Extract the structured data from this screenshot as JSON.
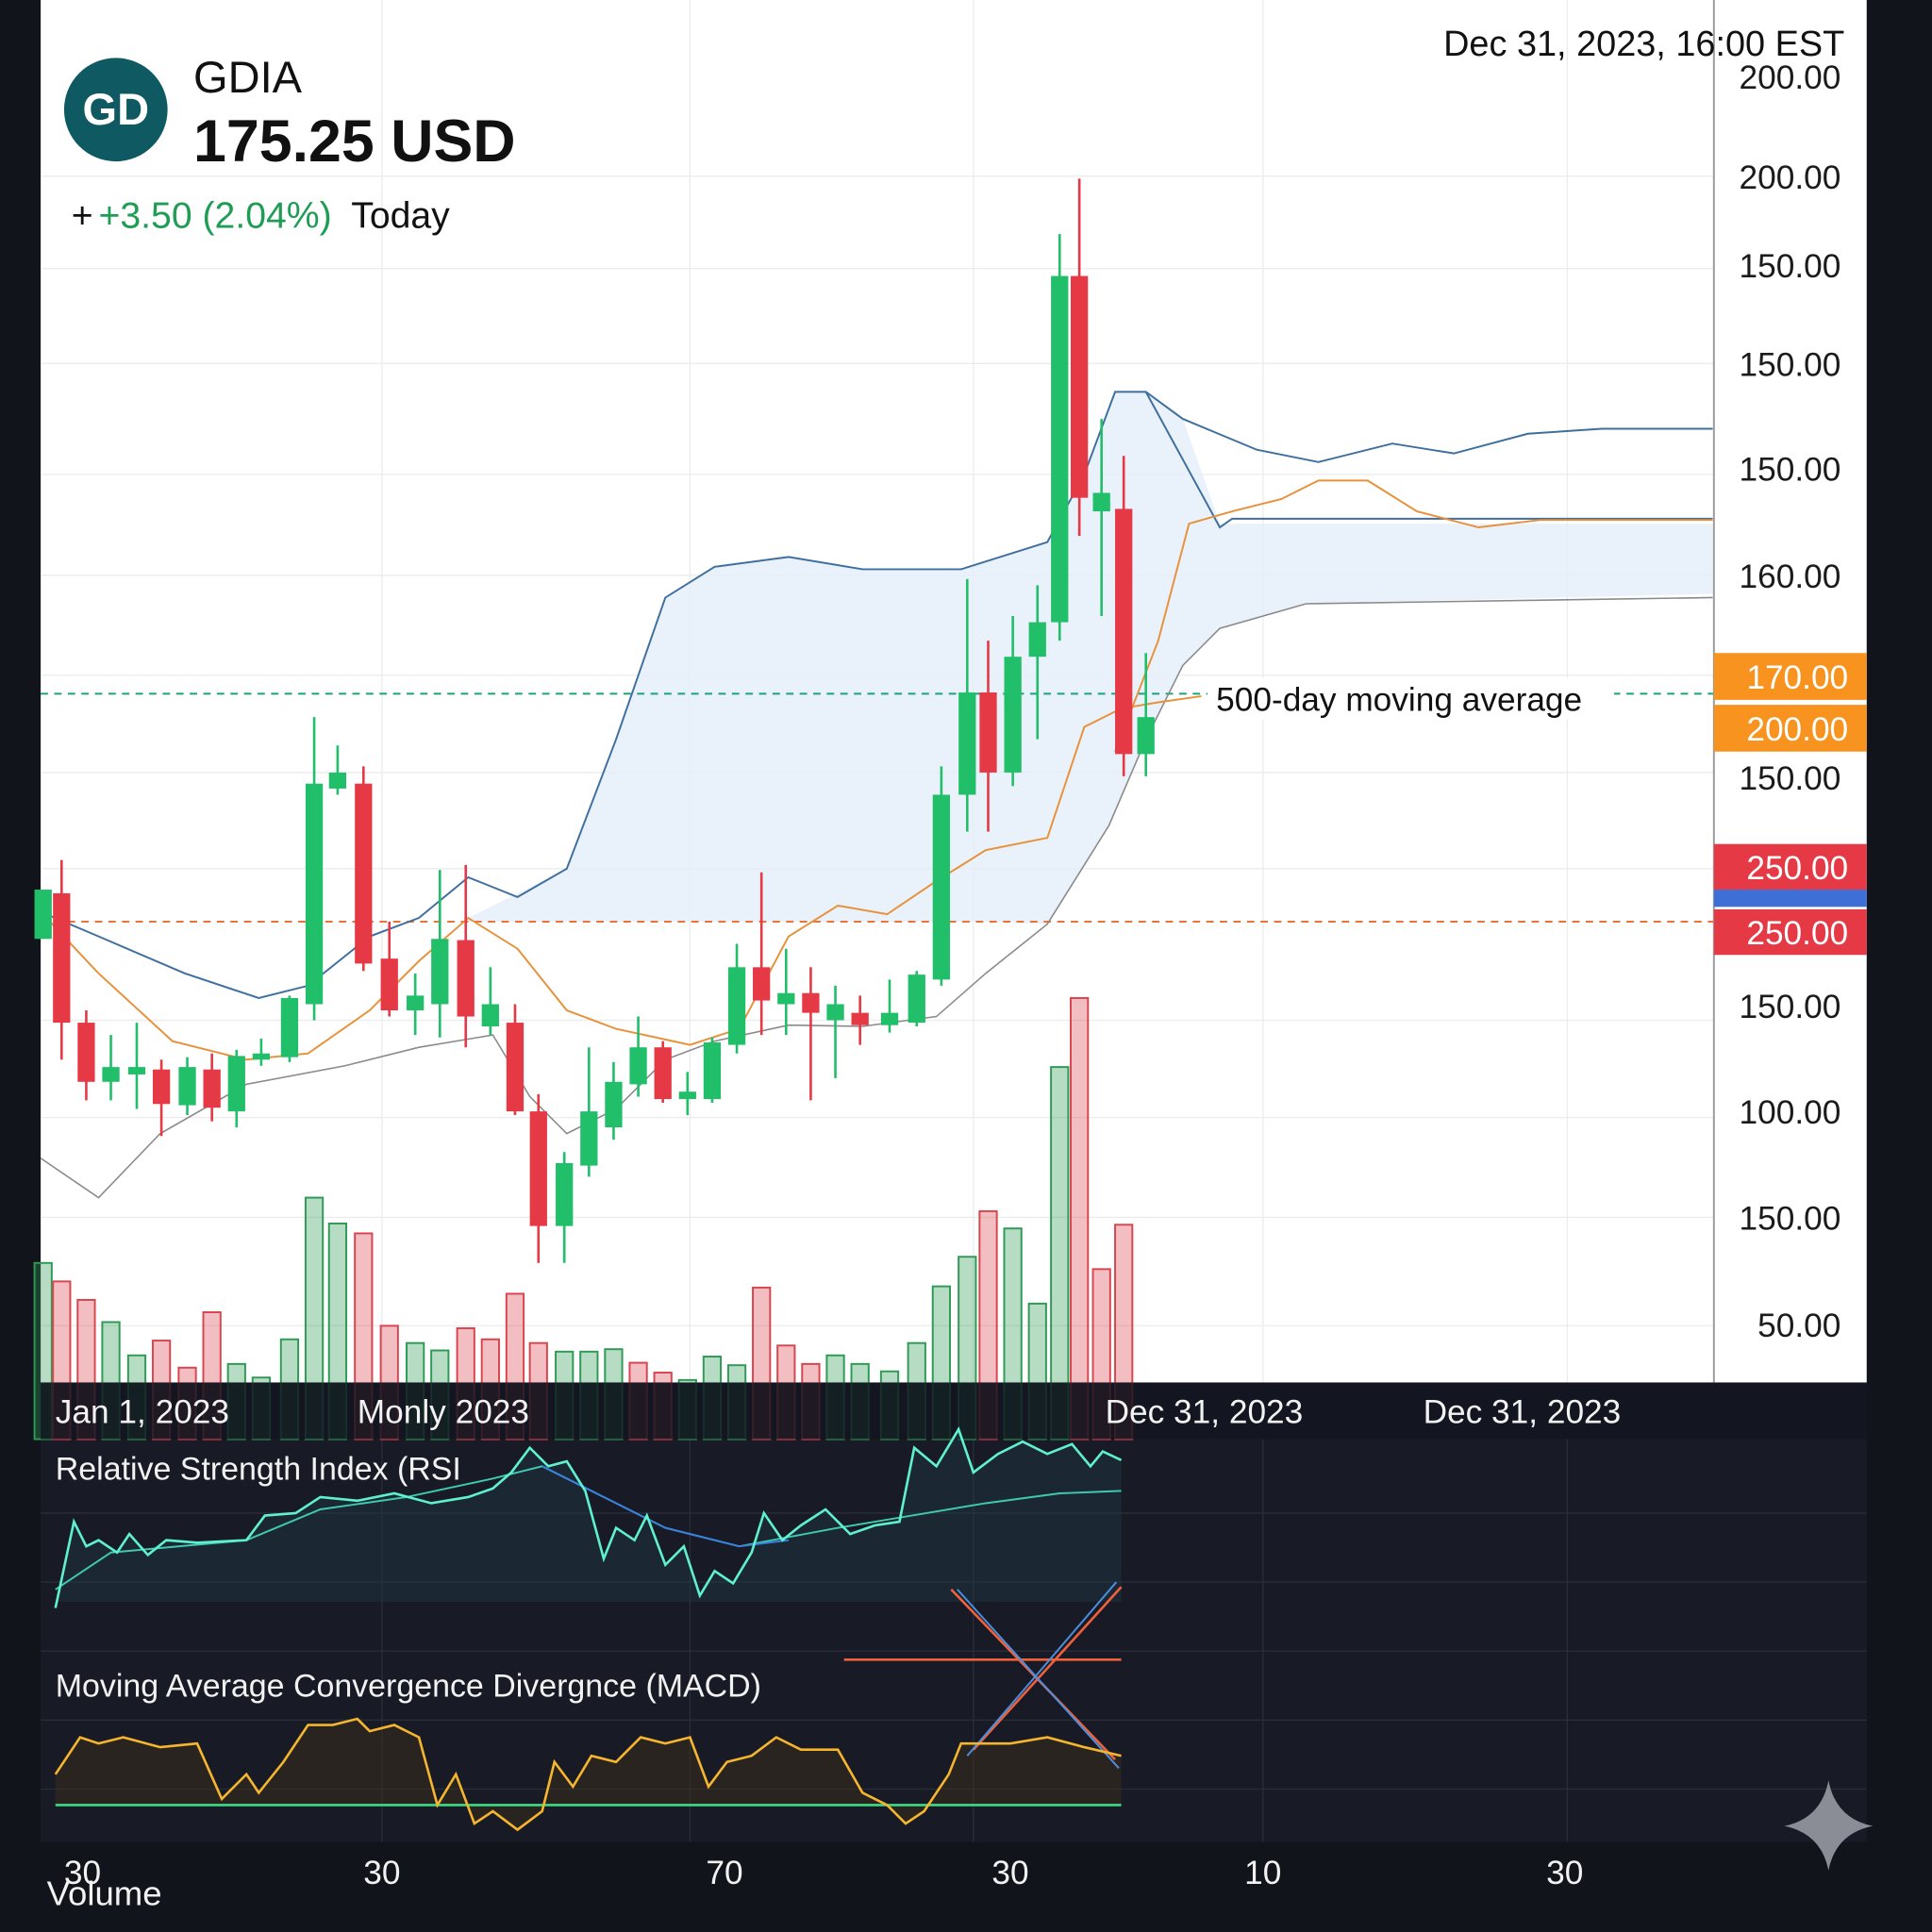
{
  "header": {
    "logo": "GD",
    "symbol": "GDIA",
    "price": "175.25 USD",
    "change_prefix": "+",
    "change": "+3.50 (2.04%)",
    "change_period": "Today"
  },
  "timestamp": "Dec 31, 2023, 16:00 EST",
  "price_axis": [
    "200.00",
    "200.00",
    "150.00",
    "150.00",
    "150.00",
    "160.00",
    "150.00",
    "150.00",
    "100.00",
    "150.00",
    "50.00"
  ],
  "price_tags": [
    {
      "label": "170.00",
      "color": "#f7931e"
    },
    {
      "label": "200.00",
      "color": "#f7931e"
    },
    {
      "label": "250.00",
      "color": "#e53945"
    },
    {
      "label": "250.00",
      "color": "#e53945"
    }
  ],
  "annotation": "500-day moving average",
  "date_axis": [
    "Jan 1, 2023",
    "Monly 2023",
    "Dec 31, 2023",
    "Dec 31, 2023"
  ],
  "indicators": {
    "rsi": "Relative Strength Index (RSI",
    "macd": "Moving Average Convergence Divergnce (MACD)"
  },
  "bottom_axis": [
    "30",
    "30",
    "70",
    "30",
    "10",
    "30"
  ],
  "volume_label": "Volume"
}
